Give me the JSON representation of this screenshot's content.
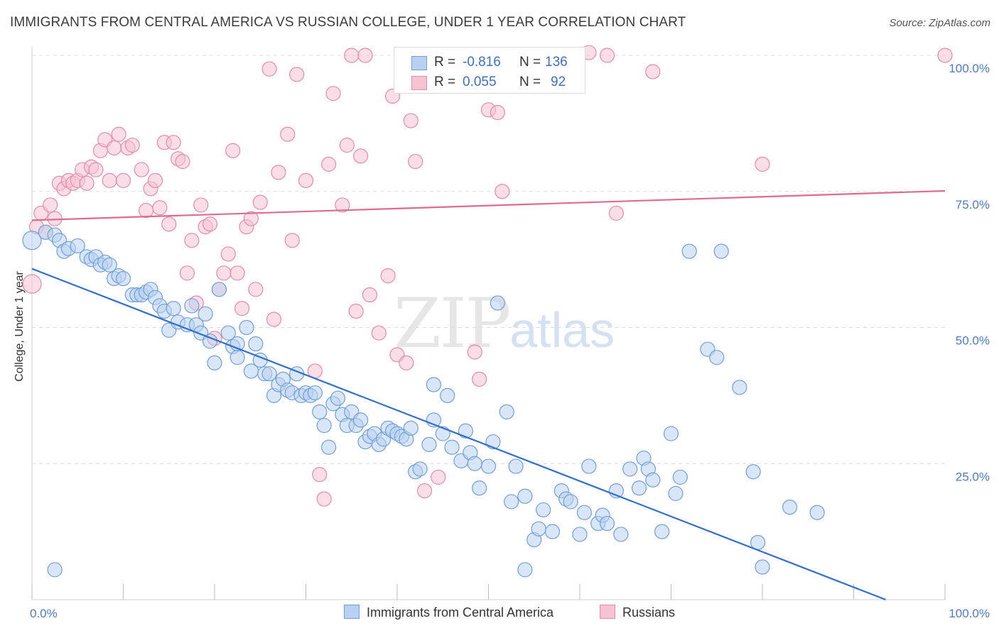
{
  "title": "IMMIGRANTS FROM CENTRAL AMERICA VS RUSSIAN COLLEGE, UNDER 1 YEAR CORRELATION CHART",
  "source": "Source: ZipAtlas.com",
  "watermark": {
    "zip": "ZIP",
    "atlas": "atlas"
  },
  "legend": {
    "r_label": "R =",
    "n_label": "N =",
    "rows": [
      {
        "name": "Immigrants from Central America",
        "r": "-0.816",
        "n": "136",
        "color": "#6f9fdc",
        "fill": "#b9d1f0"
      },
      {
        "name": "Russians",
        "r": "0.055",
        "n": "92",
        "color": "#e88aa8",
        "fill": "#f6c3d3"
      }
    ]
  },
  "chart_data": {
    "type": "scatter",
    "title": "IMMIGRANTS FROM CENTRAL AMERICA VS RUSSIAN COLLEGE, UNDER 1 YEAR CORRELATION CHART",
    "xlabel": "",
    "ylabel": "College, Under 1 year",
    "xlim": [
      0,
      100
    ],
    "ylim": [
      0,
      100
    ],
    "x_tick_labels": [
      "0.0%",
      "100.0%"
    ],
    "y_ticks": [
      25,
      50,
      75,
      100
    ],
    "y_tick_labels": [
      "25.0%",
      "50.0%",
      "75.0%",
      "100.0%"
    ],
    "grid": true,
    "series": [
      {
        "name": "Immigrants from Central America",
        "color": "#6f9fdc",
        "fill": "#b9d1f0",
        "trend": {
          "x": [
            0,
            93.5
          ],
          "y": [
            60.8,
            0
          ]
        },
        "points": [
          [
            0,
            66
          ],
          [
            1.5,
            67.5
          ],
          [
            2.5,
            67
          ],
          [
            3,
            66
          ],
          [
            3.5,
            64
          ],
          [
            4,
            64.5
          ],
          [
            5,
            65
          ],
          [
            6,
            63
          ],
          [
            6.5,
            62.5
          ],
          [
            7,
            63
          ],
          [
            7.5,
            61.5
          ],
          [
            8,
            62
          ],
          [
            8.5,
            61.5
          ],
          [
            9,
            59
          ],
          [
            9.5,
            59.5
          ],
          [
            10,
            59
          ],
          [
            11,
            56
          ],
          [
            11.5,
            56
          ],
          [
            12,
            56
          ],
          [
            12.5,
            56.5
          ],
          [
            13,
            57
          ],
          [
            13.5,
            55.5
          ],
          [
            14,
            54
          ],
          [
            14.5,
            53
          ],
          [
            15,
            49.5
          ],
          [
            15.5,
            53.5
          ],
          [
            16,
            51
          ],
          [
            17,
            50.5
          ],
          [
            17.5,
            54
          ],
          [
            18,
            50.5
          ],
          [
            18.5,
            49
          ],
          [
            19,
            52.5
          ],
          [
            19.5,
            47.5
          ],
          [
            20,
            43.5
          ],
          [
            20.5,
            57
          ],
          [
            21.5,
            49
          ],
          [
            22,
            46.5
          ],
          [
            22.5,
            47
          ],
          [
            22.5,
            44.5
          ],
          [
            23.5,
            50
          ],
          [
            24,
            42
          ],
          [
            24.5,
            47
          ],
          [
            25,
            44
          ],
          [
            25.5,
            41.5
          ],
          [
            26,
            41.5
          ],
          [
            26.5,
            37.5
          ],
          [
            27,
            39.5
          ],
          [
            27.5,
            40.5
          ],
          [
            28,
            38.5
          ],
          [
            28.5,
            38
          ],
          [
            29,
            41.5
          ],
          [
            29.5,
            37.5
          ],
          [
            30,
            38
          ],
          [
            30.5,
            37.5
          ],
          [
            31,
            38
          ],
          [
            31.5,
            34.5
          ],
          [
            32,
            32
          ],
          [
            32.5,
            28
          ],
          [
            33,
            36
          ],
          [
            33.5,
            37
          ],
          [
            34,
            34
          ],
          [
            34.5,
            32
          ],
          [
            35,
            34.5
          ],
          [
            35.5,
            32
          ],
          [
            36,
            33
          ],
          [
            36.5,
            29
          ],
          [
            37,
            30
          ],
          [
            37.5,
            30.5
          ],
          [
            38,
            28.5
          ],
          [
            38.5,
            29.5
          ],
          [
            39,
            31.5
          ],
          [
            39.5,
            31
          ],
          [
            40,
            30.5
          ],
          [
            40.5,
            30
          ],
          [
            41,
            29.5
          ],
          [
            41.5,
            31.5
          ],
          [
            42,
            23.5
          ],
          [
            42.5,
            24
          ],
          [
            43.5,
            28.5
          ],
          [
            44,
            33
          ],
          [
            44,
            39.5
          ],
          [
            45,
            30.5
          ],
          [
            45.5,
            37.5
          ],
          [
            46,
            28
          ],
          [
            47,
            25.5
          ],
          [
            47.5,
            31
          ],
          [
            48,
            27
          ],
          [
            48.5,
            25
          ],
          [
            49,
            20.5
          ],
          [
            50,
            24.5
          ],
          [
            50.5,
            29
          ],
          [
            51,
            54.5
          ],
          [
            52,
            34.5
          ],
          [
            52.5,
            18
          ],
          [
            53,
            24.5
          ],
          [
            54,
            19
          ],
          [
            55,
            11
          ],
          [
            55.5,
            13
          ],
          [
            56,
            16.5
          ],
          [
            57,
            12.5
          ],
          [
            58,
            20
          ],
          [
            58.5,
            18.5
          ],
          [
            59,
            18
          ],
          [
            60,
            12
          ],
          [
            60.5,
            16
          ],
          [
            61,
            24.5
          ],
          [
            62,
            14
          ],
          [
            62.5,
            15.5
          ],
          [
            63,
            14
          ],
          [
            64,
            20
          ],
          [
            64.5,
            12
          ],
          [
            65.5,
            24
          ],
          [
            66.5,
            20.5
          ],
          [
            67,
            26
          ],
          [
            67.5,
            24
          ],
          [
            68,
            22
          ],
          [
            69,
            12.5
          ],
          [
            70,
            30.5
          ],
          [
            70.5,
            19.5
          ],
          [
            71,
            22.5
          ],
          [
            72,
            64
          ],
          [
            74,
            46
          ],
          [
            75,
            44.5
          ],
          [
            75.5,
            64
          ],
          [
            77.5,
            39
          ],
          [
            79,
            23.5
          ],
          [
            79.5,
            10.5
          ],
          [
            80,
            6
          ],
          [
            83,
            17
          ],
          [
            86,
            16
          ],
          [
            2.5,
            5.5
          ],
          [
            54,
            5.5
          ]
        ]
      },
      {
        "name": "Russians",
        "color": "#e88aa8",
        "fill": "#f6c3d3",
        "trend": {
          "x": [
            0,
            100
          ],
          "y": [
            69.7,
            75.1
          ]
        },
        "points": [
          [
            0,
            58
          ],
          [
            0.5,
            68.5
          ],
          [
            1,
            71
          ],
          [
            1.5,
            67.5
          ],
          [
            2,
            72.5
          ],
          [
            2.5,
            70
          ],
          [
            3,
            76.5
          ],
          [
            3.5,
            75.5
          ],
          [
            4,
            77
          ],
          [
            4.5,
            76.5
          ],
          [
            5,
            77
          ],
          [
            5.5,
            79
          ],
          [
            6,
            76.5
          ],
          [
            6.5,
            79.5
          ],
          [
            7,
            79
          ],
          [
            7.5,
            82.5
          ],
          [
            8,
            84.5
          ],
          [
            8.5,
            77
          ],
          [
            9,
            83
          ],
          [
            9.5,
            85.5
          ],
          [
            10,
            77
          ],
          [
            10.5,
            83
          ],
          [
            11,
            83.5
          ],
          [
            12,
            79
          ],
          [
            12.5,
            71.5
          ],
          [
            13,
            75.5
          ],
          [
            13.5,
            77
          ],
          [
            14,
            72
          ],
          [
            14.5,
            84
          ],
          [
            15,
            69
          ],
          [
            15.5,
            84
          ],
          [
            16,
            81
          ],
          [
            16.5,
            80.5
          ],
          [
            17,
            60
          ],
          [
            17.5,
            66
          ],
          [
            18,
            54.5
          ],
          [
            18.5,
            72.5
          ],
          [
            19,
            68.5
          ],
          [
            19.5,
            69
          ],
          [
            20,
            48
          ],
          [
            20.5,
            57
          ],
          [
            21,
            60
          ],
          [
            21.5,
            63.5
          ],
          [
            22,
            82.5
          ],
          [
            22.5,
            60
          ],
          [
            23,
            53.5
          ],
          [
            23.5,
            68.5
          ],
          [
            24,
            70
          ],
          [
            24.5,
            57
          ],
          [
            25,
            73
          ],
          [
            26,
            97.5
          ],
          [
            26.5,
            51.5
          ],
          [
            27,
            78.5
          ],
          [
            28,
            85.5
          ],
          [
            28.5,
            66
          ],
          [
            29,
            96.5
          ],
          [
            30,
            77
          ],
          [
            31,
            42
          ],
          [
            31.5,
            23
          ],
          [
            32,
            18.5
          ],
          [
            32.5,
            80
          ],
          [
            33,
            93
          ],
          [
            34,
            72.5
          ],
          [
            34.5,
            83.5
          ],
          [
            35,
            100
          ],
          [
            35.5,
            53
          ],
          [
            36,
            81.5
          ],
          [
            36.5,
            100
          ],
          [
            37,
            56
          ],
          [
            38,
            49
          ],
          [
            39,
            59.5
          ],
          [
            39.5,
            92.5
          ],
          [
            40,
            45
          ],
          [
            41,
            43.5
          ],
          [
            41.5,
            88
          ],
          [
            42,
            80.5
          ],
          [
            43,
            20
          ],
          [
            44.5,
            22.5
          ],
          [
            47,
            100
          ],
          [
            48.5,
            45.5
          ],
          [
            49,
            40.5
          ],
          [
            50,
            90
          ],
          [
            51,
            89.5
          ],
          [
            51.5,
            75
          ],
          [
            55,
            100
          ],
          [
            61,
            100.5
          ],
          [
            63,
            100
          ],
          [
            64,
            71
          ],
          [
            68,
            97
          ],
          [
            80,
            80
          ],
          [
            100,
            100
          ]
        ]
      }
    ]
  }
}
